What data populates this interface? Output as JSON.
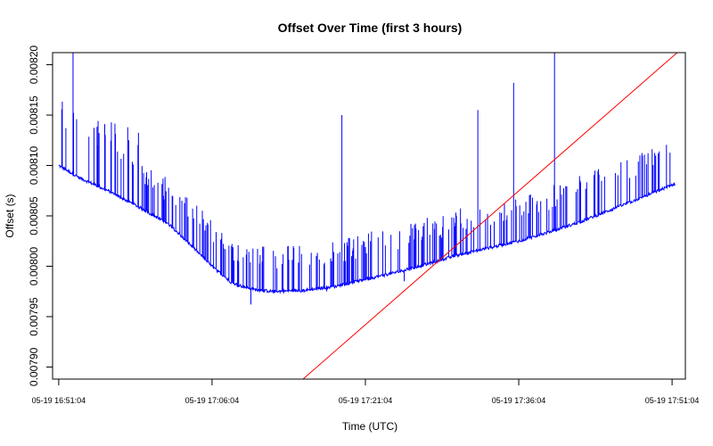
{
  "chart_data": {
    "type": "line",
    "title": "Offset Over Time (first 3 hours)",
    "xlabel": "Time (UTC)",
    "ylabel": "Offset (s)",
    "x_tick_labels": [
      "05-19 16:51:04",
      "05-19 17:06:04",
      "05-19 17:21:04",
      "05-19 17:36:04",
      "05-19 17:51:04"
    ],
    "y_tick_labels": [
      "0.00790",
      "0.00795",
      "0.00800",
      "0.00805",
      "0.00810",
      "0.00815",
      "0.00820"
    ],
    "y_ticks": [
      0.0079,
      0.00795,
      0.008,
      0.00805,
      0.0081,
      0.00815,
      0.0082
    ],
    "xlim_minutes": [
      -0.6,
      61.3
    ],
    "ylim": [
      0.007888,
      0.008212
    ],
    "grid": false,
    "series": [
      {
        "color": "#0000ff",
        "style": "line with frequent upward spikes",
        "baseline": {
          "minutes": [
            0,
            2,
            5,
            8,
            11,
            13,
            15,
            17,
            19,
            21,
            24,
            27,
            30,
            33,
            36,
            39,
            42,
            45,
            48,
            51,
            54,
            57,
            60.3
          ],
          "offset": [
            0.0081,
            0.008088,
            0.008074,
            0.008058,
            0.00804,
            0.00802,
            0.008,
            0.007983,
            0.007977,
            0.007975,
            0.007976,
            0.00798,
            0.007987,
            0.007994,
            0.008002,
            0.008011,
            0.008018,
            0.008025,
            0.008034,
            0.008044,
            0.008056,
            0.008068,
            0.008082
          ]
        },
        "notable_spikes": [
          {
            "minute": 1.4,
            "offset": 0.008215
          },
          {
            "minute": 27.7,
            "offset": 0.00815
          },
          {
            "minute": 41.0,
            "offset": 0.008155
          },
          {
            "minute": 44.5,
            "offset": 0.008182
          },
          {
            "minute": 48.5,
            "offset": 0.008215
          },
          {
            "minute": 18.8,
            "offset": 0.007962
          },
          {
            "minute": 26.2,
            "offset": 0.007975
          },
          {
            "minute": 33.8,
            "offset": 0.007985
          }
        ]
      },
      {
        "color": "#ff0000",
        "style": "straight trend line",
        "points": [
          {
            "minute": 23.9,
            "offset": 0.007888
          },
          {
            "minute": 60.5,
            "offset": 0.008212
          }
        ]
      }
    ]
  }
}
